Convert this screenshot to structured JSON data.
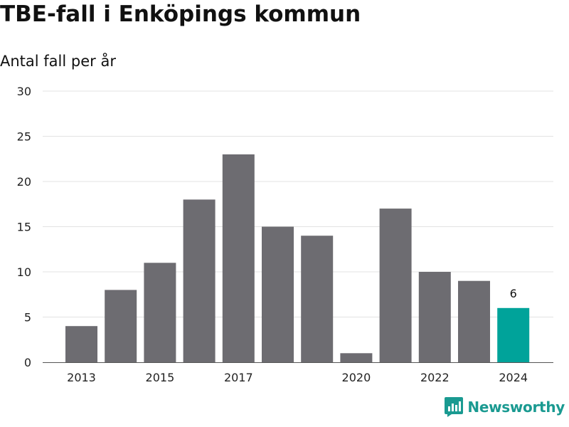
{
  "header": {
    "title": "TBE-fall i Enköpings kommun",
    "subtitle": "Antal fall per år"
  },
  "logo": {
    "text": "Newsworthy",
    "icon": "newsworthy-logo-icon"
  },
  "colors": {
    "bar": "#6d6c71",
    "highlight": "#00a39a",
    "grid": "#e3e3e3",
    "axis": "#555555",
    "brand": "#1a9a91"
  },
  "chart_data": {
    "type": "bar",
    "title": "TBE-fall i Enköpings kommun",
    "subtitle": "Antal fall per år",
    "categories": [
      "2013",
      "2014",
      "2015",
      "2016",
      "2017",
      "2018",
      "2019",
      "2020",
      "2021",
      "2022",
      "2023",
      "2024"
    ],
    "values": [
      4,
      8,
      11,
      18,
      23,
      15,
      14,
      1,
      17,
      10,
      9,
      6
    ],
    "xtick_labels": [
      "2013",
      "2015",
      "2017",
      "2020",
      "2022",
      "2024"
    ],
    "yticks": [
      0,
      5,
      10,
      15,
      20,
      25,
      30
    ],
    "ylim": [
      0,
      30
    ],
    "highlight_index": 11,
    "data_labels": [
      {
        "category": "2024",
        "text": "6"
      }
    ],
    "grid": true,
    "xlabel": "",
    "ylabel": ""
  }
}
